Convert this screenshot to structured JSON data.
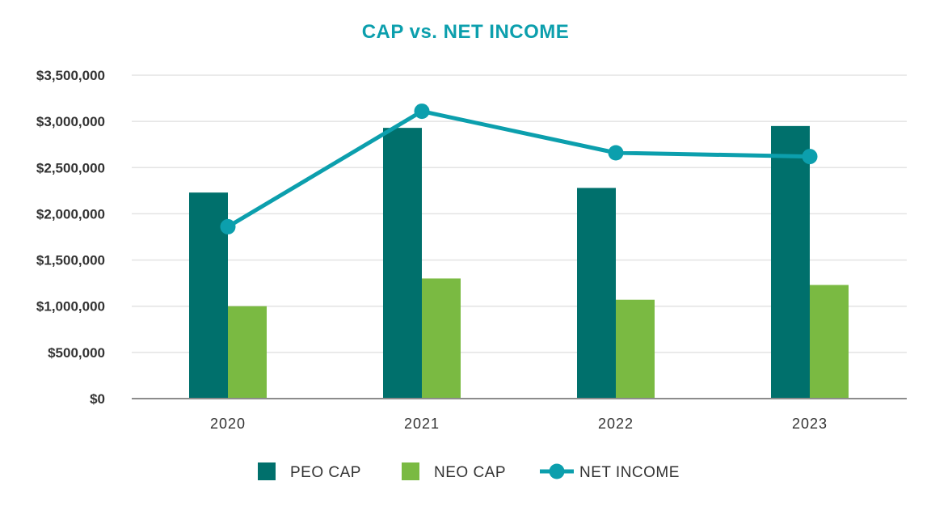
{
  "chart_data": {
    "type": "bar",
    "title": "CAP vs. NET INCOME",
    "categories": [
      "2020",
      "2021",
      "2022",
      "2023"
    ],
    "ylim": [
      0,
      3500000
    ],
    "yticks": [
      0,
      500000,
      1000000,
      1500000,
      2000000,
      2500000,
      3000000,
      3500000
    ],
    "ytick_labels": [
      "$0",
      "$500,000",
      "$1,000,000",
      "$1,500,000",
      "$2,000,000",
      "$2,500,000",
      "$3,000,000",
      "$3,500,000"
    ],
    "grid": true,
    "legend_position": "bottom",
    "series": [
      {
        "name": "PEO CAP",
        "type": "bar",
        "color": "#00706c",
        "values": [
          2230000,
          2930000,
          2280000,
          2950000
        ]
      },
      {
        "name": "NEO CAP",
        "type": "bar",
        "color": "#7aba42",
        "values": [
          1000000,
          1300000,
          1070000,
          1230000
        ]
      },
      {
        "name": "NET INCOME",
        "type": "line",
        "color": "#0c9fad",
        "values": [
          1860000,
          3110000,
          2660000,
          2620000
        ]
      }
    ]
  },
  "colors": {
    "title": "#0c9fad",
    "grid": "#e3e3e3",
    "axis": "#8c8c8c",
    "text": "#333333"
  }
}
